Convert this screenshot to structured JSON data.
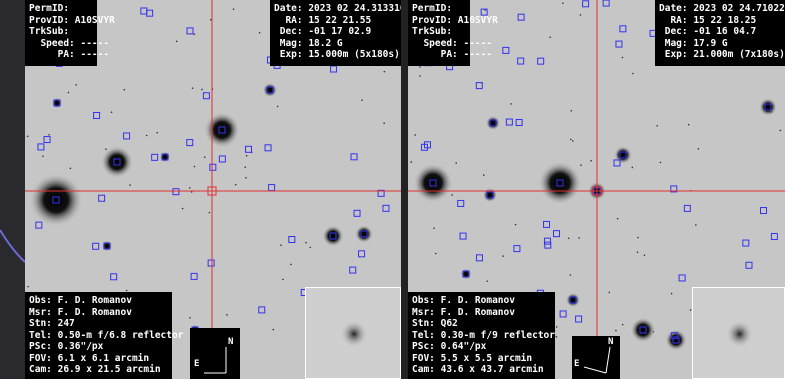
{
  "panels": [
    {
      "id_box": [
        "PermID:",
        "ProvID: A10SVYR",
        "TrkSub:",
        "  Speed: -----",
        "     PA: -----"
      ],
      "obs_box": [
        "Date: 2023 02 24.313310",
        "  RA: 15 22 21.55",
        " Dec: -01 17 02.9",
        " Mag: 18.2 G",
        " Exp: 15.000m (5x180s)"
      ],
      "info_box": [
        "Obs: F. D. Romanov",
        "Msr: F. D. Romanov",
        "Stn: 247",
        "Tel: 0.50-m f/6.8 reflector",
        "PSc: 0.36\"/px",
        "FOV: 6.1 x 6.1 arcmin",
        "Cam: 26.9 x 21.5 arcmin"
      ],
      "compass": {
        "north": "N",
        "east": "E"
      }
    },
    {
      "id_box": [
        "PermID:",
        "ProvID: A10SVYR",
        "TrkSub:",
        "  Speed: -----",
        "     PA: -----"
      ],
      "obs_box": [
        "Date: 2023 02 24.710226",
        "  RA: 15 22 18.25",
        " Dec: -01 16 04.7",
        " Mag: 17.9 G",
        " Exp: 21.000m (7x180s)"
      ],
      "info_box": [
        "Obs: F. D. Romanov",
        "Msr: F. D. Romanov",
        "Stn: Q62",
        "Tel: 0.30-m f/9 reflector",
        "PSc: 0.64\"/px",
        "FOV: 5.5 x 5.5 arcmin",
        "Cam: 43.6 x 43.7 arcmin"
      ],
      "compass": {
        "north": "N",
        "east": "E"
      }
    }
  ]
}
